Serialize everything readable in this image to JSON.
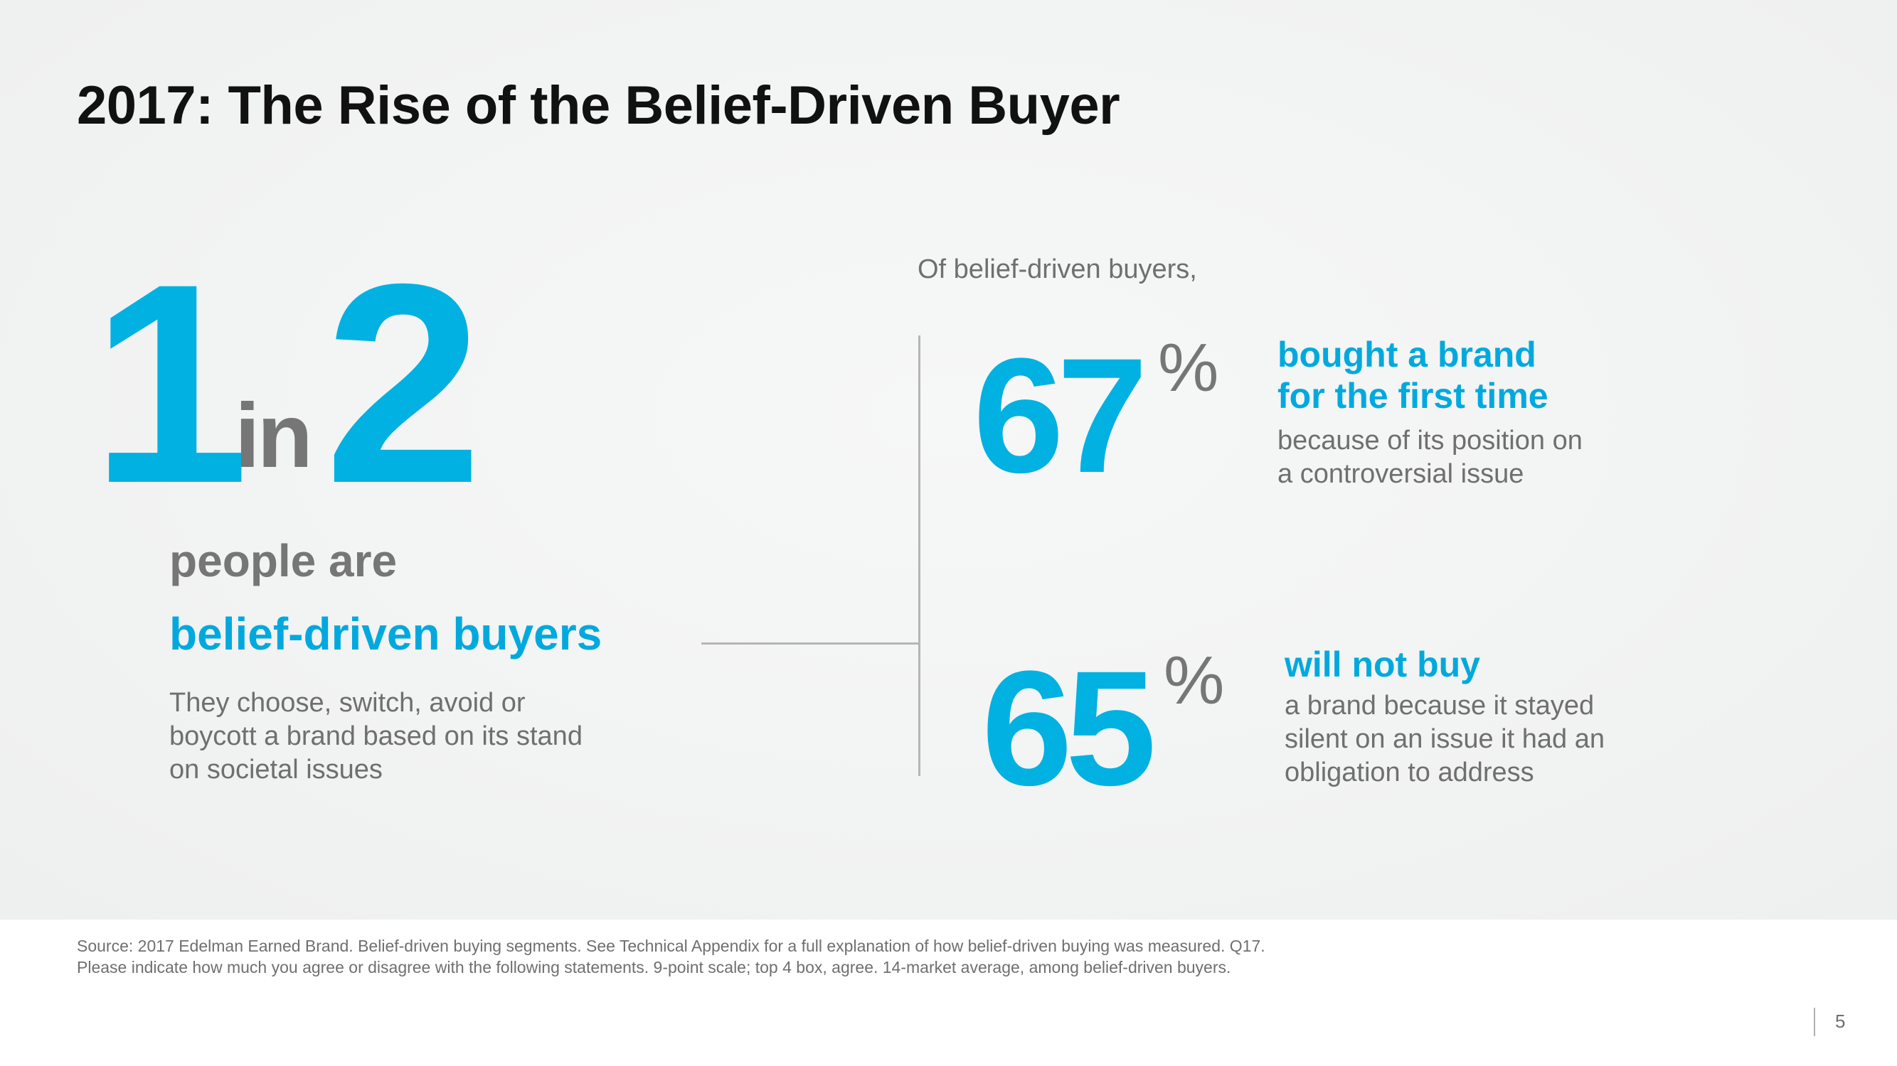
{
  "slide": {
    "title": "2017: The Rise of the Belief-Driven Buyer",
    "headline_stat": {
      "numerator": "1",
      "connector": "in",
      "denominator": "2",
      "line1": "people are",
      "line2": "belief-driven buyers",
      "description": "They choose, switch, avoid or boycott a brand based on its stand on societal issues"
    },
    "intro": "Of belief-driven buyers,",
    "stats": [
      {
        "number": "67",
        "percent_sign": "%",
        "heading_line1": "bought a brand",
        "heading_line2": "for the first time",
        "desc_line1": "because of its position on",
        "desc_line2": "a controversial issue"
      },
      {
        "number": "65",
        "percent_sign": "%",
        "heading_line1": "will not buy",
        "desc_line1": "a brand because it stayed",
        "desc_line2": "silent on an issue it had an",
        "desc_line3": "obligation to address"
      }
    ]
  },
  "footer": {
    "source": "Source: 2017 Edelman Earned Brand. Belief-driven buying segments. See Technical Appendix for a full explanation of how belief-driven buying was measured. Q17. Please indicate how much you agree or disagree with the following statements. 9-point scale; top 4 box, agree. 14-market average, among belief-driven buyers.",
    "page_number": "5"
  },
  "colors": {
    "accent": "#00b1e1",
    "gray_text": "#6f6f6f",
    "heading": "#111111"
  }
}
